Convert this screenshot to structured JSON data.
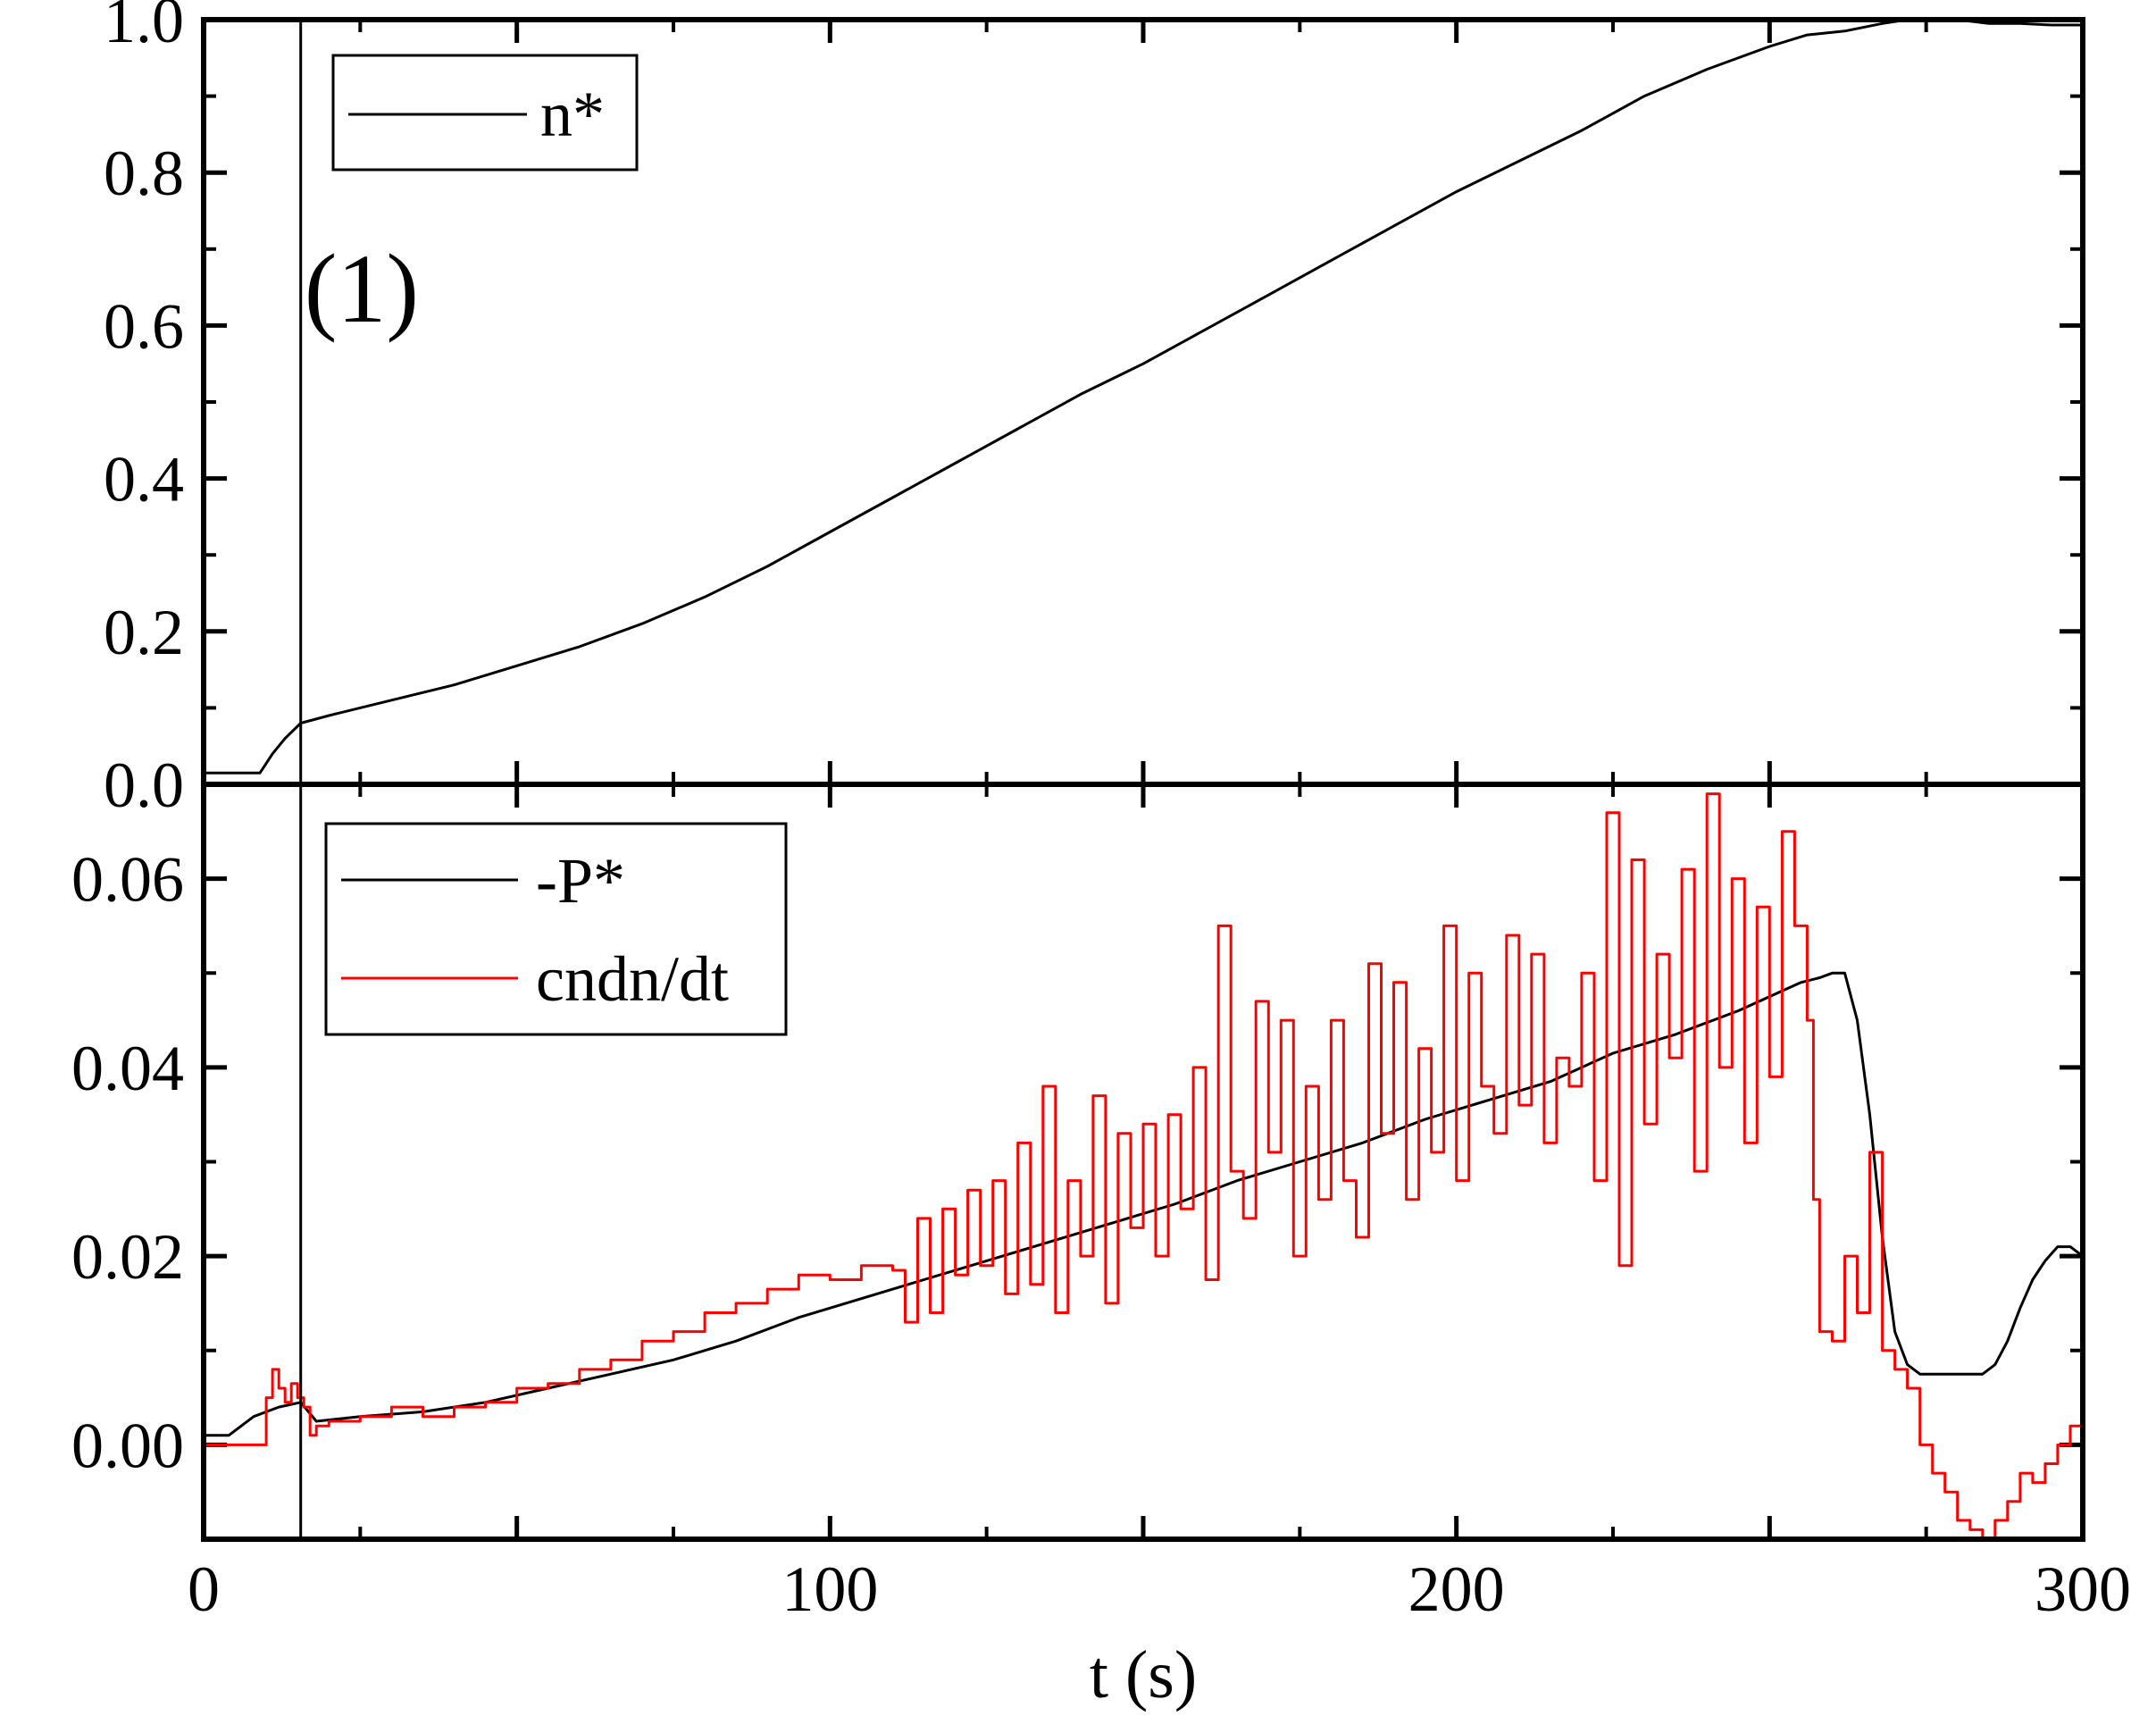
{
  "chart_data": [
    {
      "type": "line",
      "panel": "top",
      "xlim": [
        0,
        300
      ],
      "ylim": [
        0.0,
        1.0
      ],
      "yticks": [
        "0.0",
        "0.2",
        "0.4",
        "0.6",
        "0.8",
        "1.0"
      ],
      "xlabel": "",
      "ylabel": "",
      "legend": {
        "placement": "top-left",
        "entries": [
          "n*"
        ]
      },
      "annotation": {
        "text": "(1)",
        "x": 15.5
      },
      "series": [
        {
          "name": "n*",
          "color": "#000000",
          "x": [
            0,
            5,
            9,
            11,
            13,
            15.5,
            20,
            30,
            40,
            50,
            60,
            70,
            80,
            90,
            100,
            110,
            120,
            130,
            140,
            150,
            160,
            170,
            180,
            190,
            200,
            210,
            220,
            230,
            240,
            250,
            256,
            262,
            268,
            272,
            276,
            280,
            285,
            290,
            295,
            300
          ],
          "y": [
            0.015,
            0.015,
            0.015,
            0.04,
            0.06,
            0.08,
            0.09,
            0.11,
            0.13,
            0.155,
            0.18,
            0.21,
            0.245,
            0.285,
            0.33,
            0.375,
            0.42,
            0.465,
            0.51,
            0.55,
            0.595,
            0.64,
            0.685,
            0.73,
            0.775,
            0.815,
            0.855,
            0.9,
            0.935,
            0.965,
            0.98,
            0.985,
            0.995,
            1.0,
            1.0,
            1.0,
            0.995,
            0.995,
            0.993,
            0.993
          ]
        }
      ]
    },
    {
      "type": "line",
      "panel": "bottom",
      "xlim": [
        0,
        300
      ],
      "ylim": [
        -0.01,
        0.07
      ],
      "xticks": [
        "0",
        "100",
        "200",
        "300"
      ],
      "yticks": [
        "0.00",
        "0.02",
        "0.04",
        "0.06"
      ],
      "xlabel": "t (s)",
      "ylabel": "",
      "legend": {
        "placement": "top-left",
        "entries": [
          "-P*",
          "cndn/dt"
        ]
      },
      "series": [
        {
          "name": "-P*",
          "color": "#000000",
          "x": [
            0,
            4,
            8,
            12,
            15.5,
            18,
            25,
            35,
            45,
            55,
            65,
            75,
            85,
            95,
            105,
            115,
            125,
            135,
            145,
            155,
            165,
            175,
            185,
            195,
            205,
            215,
            225,
            235,
            245,
            255,
            258,
            260,
            262,
            264,
            266,
            268,
            270,
            272,
            274,
            276,
            280,
            284,
            286,
            288,
            290,
            292,
            294,
            296,
            298,
            300
          ],
          "y": [
            0.001,
            0.001,
            0.003,
            0.004,
            0.0045,
            0.0025,
            0.003,
            0.0035,
            0.0045,
            0.006,
            0.0075,
            0.009,
            0.011,
            0.0135,
            0.0155,
            0.0175,
            0.0195,
            0.0215,
            0.0235,
            0.0255,
            0.028,
            0.03,
            0.032,
            0.0345,
            0.0365,
            0.0385,
            0.0415,
            0.0435,
            0.046,
            0.049,
            0.0495,
            0.05,
            0.05,
            0.045,
            0.035,
            0.022,
            0.012,
            0.0085,
            0.0075,
            0.0075,
            0.0075,
            0.0075,
            0.0085,
            0.011,
            0.0145,
            0.0175,
            0.0195,
            0.021,
            0.021,
            0.02
          ]
        },
        {
          "name": "cndn/dt",
          "color": "#ff0000",
          "x": [
            0,
            5,
            9,
            10,
            11,
            12,
            13,
            14,
            15,
            15.5,
            16,
            17,
            18,
            20,
            25,
            30,
            35,
            40,
            45,
            50,
            55,
            60,
            65,
            70,
            75,
            80,
            85,
            90,
            95,
            100,
            105,
            110,
            112,
            114,
            116,
            118,
            120,
            122,
            124,
            126,
            128,
            130,
            132,
            134,
            136,
            138,
            140,
            142,
            144,
            146,
            148,
            150,
            152,
            154,
            156,
            158,
            160,
            162,
            164,
            166,
            168,
            170,
            172,
            174,
            176,
            178,
            180,
            182,
            184,
            186,
            188,
            190,
            192,
            194,
            196,
            198,
            200,
            202,
            204,
            206,
            208,
            210,
            212,
            214,
            216,
            218,
            220,
            222,
            224,
            226,
            228,
            230,
            232,
            234,
            236,
            238,
            240,
            242,
            244,
            246,
            248,
            250,
            252,
            254,
            256,
            257,
            258,
            260,
            262,
            264,
            266,
            268,
            270,
            272,
            274,
            276,
            278,
            280,
            282,
            284,
            286,
            288,
            290,
            292,
            294,
            296,
            298,
            300
          ],
          "y": [
            0.0,
            0.0,
            0.0,
            0.005,
            0.008,
            0.006,
            0.0045,
            0.0065,
            0.005,
            0.005,
            0.004,
            0.001,
            0.002,
            0.0025,
            0.003,
            0.004,
            0.003,
            0.004,
            0.0045,
            0.006,
            0.0065,
            0.008,
            0.009,
            0.011,
            0.012,
            0.014,
            0.015,
            0.0165,
            0.018,
            0.0175,
            0.019,
            0.0185,
            0.013,
            0.024,
            0.014,
            0.025,
            0.018,
            0.027,
            0.019,
            0.028,
            0.016,
            0.032,
            0.017,
            0.038,
            0.014,
            0.028,
            0.02,
            0.037,
            0.015,
            0.033,
            0.023,
            0.034,
            0.02,
            0.035,
            0.025,
            0.04,
            0.0175,
            0.055,
            0.029,
            0.024,
            0.047,
            0.031,
            0.045,
            0.02,
            0.038,
            0.026,
            0.045,
            0.028,
            0.022,
            0.051,
            0.033,
            0.049,
            0.026,
            0.042,
            0.031,
            0.055,
            0.028,
            0.05,
            0.038,
            0.033,
            0.054,
            0.036,
            0.052,
            0.032,
            0.041,
            0.038,
            0.05,
            0.028,
            0.067,
            0.019,
            0.062,
            0.034,
            0.052,
            0.041,
            0.061,
            0.029,
            0.069,
            0.04,
            0.06,
            0.032,
            0.057,
            0.039,
            0.065,
            0.055,
            0.045,
            0.026,
            0.012,
            0.011,
            0.02,
            0.014,
            0.031,
            0.01,
            0.008,
            0.006,
            0.0,
            -0.003,
            -0.005,
            -0.008,
            -0.009,
            -0.01,
            -0.008,
            -0.006,
            -0.003,
            -0.004,
            -0.002,
            0.0,
            0.002,
            0.004
          ]
        }
      ]
    }
  ]
}
